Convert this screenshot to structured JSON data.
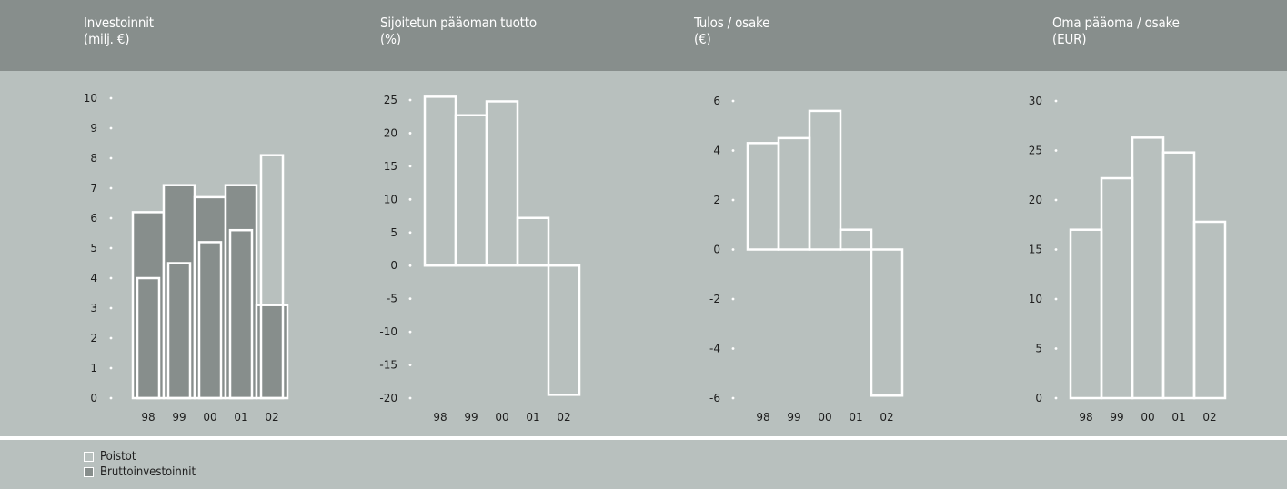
{
  "colors": {
    "header_bg": "#878e8c",
    "plot_bg": "#b8c0be",
    "outline": "#ffffff",
    "fill_dark": "#878e8c"
  },
  "panels": [
    {
      "title_line1": "Investoinnit",
      "title_line2": "(milj. €)"
    },
    {
      "title_line1": "Sijoitetun pääoman tuotto",
      "title_line2": "(%)"
    },
    {
      "title_line1": "Tulos / osake",
      "title_line2": "(€)"
    },
    {
      "title_line1": "Oma pääoma / osake",
      "title_line2": "(EUR)"
    }
  ],
  "legend": [
    {
      "label": "Poistot",
      "style": "outline"
    },
    {
      "label": "Bruttoinvestoinnit",
      "style": "filled"
    }
  ],
  "chart_data": [
    {
      "type": "bar",
      "categories": [
        "98",
        "99",
        "00",
        "01",
        "02"
      ],
      "series": [
        {
          "name": "Bruttoinvestoinnit",
          "values": [
            6.2,
            7.1,
            6.7,
            7.1,
            3.1
          ]
        },
        {
          "name": "Poistot",
          "values": [
            4.0,
            4.5,
            5.2,
            5.6,
            8.1
          ]
        }
      ],
      "yticks": [
        0,
        1,
        2,
        3,
        4,
        5,
        6,
        7,
        8,
        9,
        10
      ],
      "ylim": [
        0,
        10
      ],
      "grid": false
    },
    {
      "type": "bar",
      "categories": [
        "98",
        "99",
        "00",
        "01",
        "02"
      ],
      "values": [
        25.5,
        22.7,
        24.8,
        7.2,
        -19.5
      ],
      "yticks": [
        25,
        20,
        15,
        10,
        5,
        0,
        -5,
        -10,
        -15,
        -20
      ],
      "ylim": [
        -20,
        25
      ],
      "grid": false
    },
    {
      "type": "bar",
      "categories": [
        "98",
        "99",
        "00",
        "01",
        "02"
      ],
      "values": [
        4.3,
        4.5,
        5.6,
        0.8,
        -5.9
      ],
      "yticks": [
        6,
        4,
        2,
        0,
        -2,
        -4,
        -6
      ],
      "ylim": [
        -6,
        6
      ],
      "grid": false
    },
    {
      "type": "bar",
      "categories": [
        "98",
        "99",
        "00",
        "01",
        "02"
      ],
      "values": [
        17.0,
        22.2,
        26.3,
        24.8,
        17.8
      ],
      "yticks": [
        30,
        25,
        20,
        15,
        10,
        5,
        0
      ],
      "ylim": [
        0,
        30
      ],
      "grid": false
    }
  ]
}
